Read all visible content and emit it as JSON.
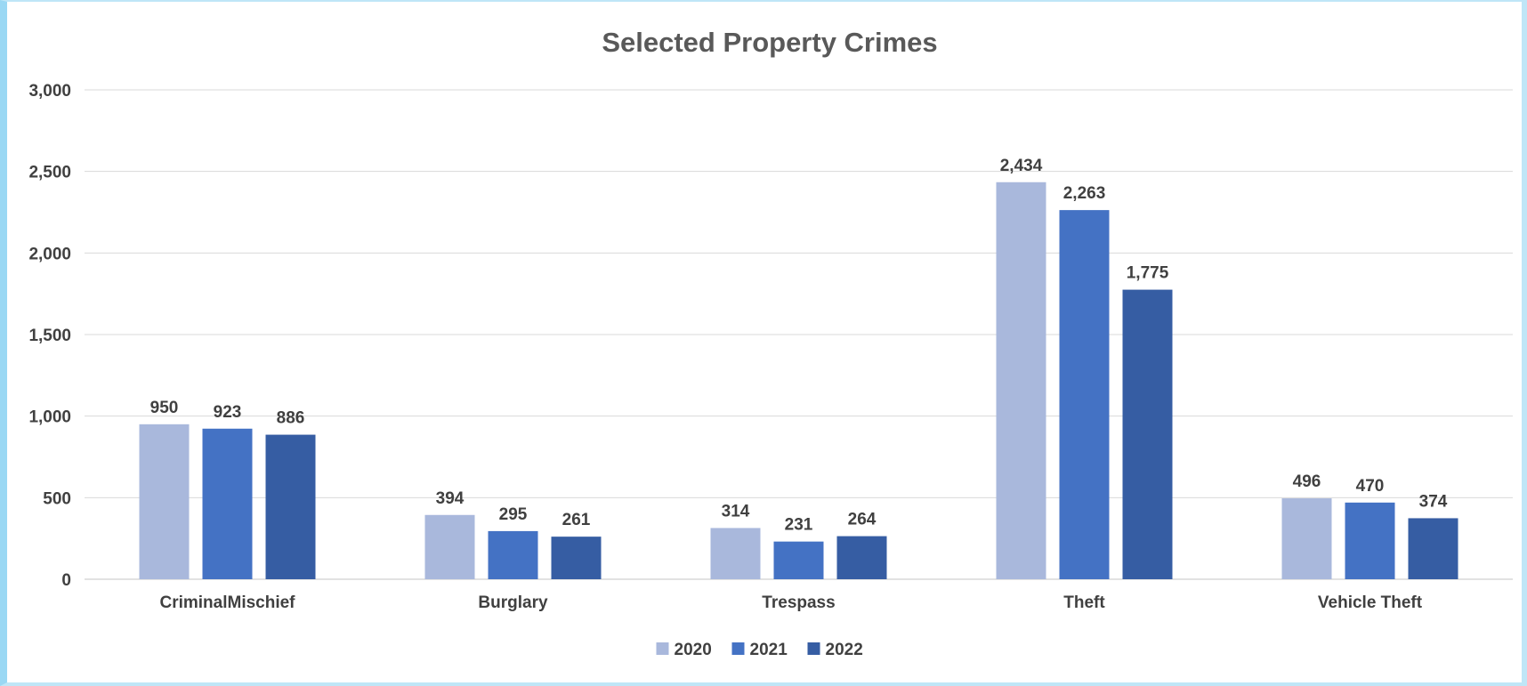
{
  "chart_data": {
    "type": "bar",
    "title": "Selected Property Crimes",
    "categories": [
      "CriminalMischief",
      "Burglary",
      "Trespass",
      "Theft",
      "Vehicle Theft"
    ],
    "series": [
      {
        "name": "2020",
        "color": "#a9b8dc",
        "values": [
          950,
          394,
          314,
          2434,
          496
        ],
        "labels": [
          "950",
          "394",
          "314",
          "2,434",
          "496"
        ]
      },
      {
        "name": "2021",
        "color": "#4472c4",
        "values": [
          923,
          295,
          231,
          2263,
          470
        ],
        "labels": [
          "923",
          "295",
          "231",
          "2,263",
          "470"
        ]
      },
      {
        "name": "2022",
        "color": "#365da3",
        "values": [
          886,
          261,
          264,
          1775,
          374
        ],
        "labels": [
          "886",
          "261",
          "264",
          "1,775",
          "374"
        ]
      }
    ],
    "ylim": [
      0,
      3000
    ],
    "yticks": [
      0,
      500,
      1000,
      1500,
      2000,
      2500,
      3000
    ],
    "ytick_labels": [
      "0",
      "500",
      "1,000",
      "1,500",
      "2,000",
      "2,500",
      "3,000"
    ],
    "grid": true,
    "legend_position": "bottom-center",
    "gridline_color": "#d9d9d9"
  }
}
